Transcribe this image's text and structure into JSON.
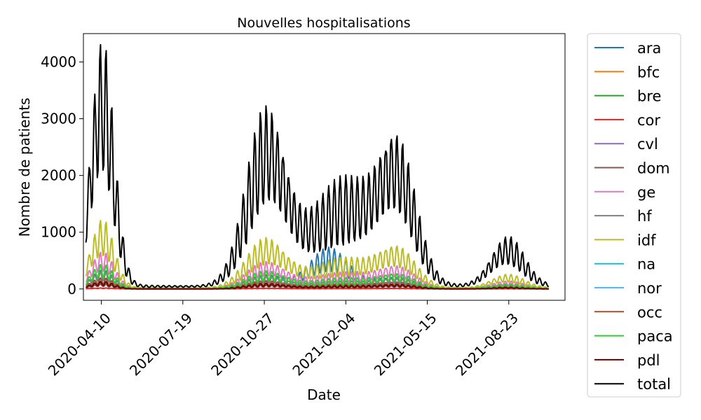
{
  "chart_data": {
    "type": "line",
    "title": "Nouvelles hospitalisations",
    "xlabel": "Date",
    "ylabel": "Nombre de patients",
    "x_start": "2020-03-19",
    "x_end": "2021-10-31",
    "x_ticks": [
      "2020-04-10",
      "2020-07-19",
      "2020-10-27",
      "2021-02-04",
      "2021-05-15",
      "2021-08-23"
    ],
    "ylim": [
      -200,
      4500
    ],
    "y_ticks": [
      0,
      1000,
      2000,
      3000,
      4000
    ],
    "legend_position": "outside-right",
    "series": [
      {
        "name": "ara",
        "color": "#1f77b4",
        "scale": 0.075,
        "extra": [
          [
            300,
            22,
            600
          ]
        ]
      },
      {
        "name": "bfc",
        "color": "#ff7f0e",
        "scale": 0.035
      },
      {
        "name": "bre",
        "color": "#2ca02c",
        "scale": 0.022
      },
      {
        "name": "cor",
        "color": "#d62728",
        "scale": 0.004
      },
      {
        "name": "cvl",
        "color": "#9467bd",
        "scale": 0.028
      },
      {
        "name": "dom",
        "color": "#8c564b",
        "scale": 0.02
      },
      {
        "name": "ge",
        "color": "#e377c2",
        "scale": 0.15
      },
      {
        "name": "hf",
        "color": "#7f7f7f",
        "scale": 0.07
      },
      {
        "name": "idf",
        "color": "#bcbd22",
        "scale": 0.28
      },
      {
        "name": "na",
        "color": "#17becf",
        "scale": 0.04
      },
      {
        "name": "nor",
        "color": "#4db8ff",
        "scale": 0.04
      },
      {
        "name": "occ",
        "color": "#a0522d",
        "scale": 0.045
      },
      {
        "name": "paca",
        "color": "#33cc33",
        "scale": 0.1
      },
      {
        "name": "pdl",
        "color": "#6b0000",
        "scale": 0.03
      },
      {
        "name": "total",
        "color": "#000000",
        "scale": 1.0
      }
    ],
    "total_waves": [
      {
        "center_day": 23,
        "peak": 4280,
        "width": 14
      },
      {
        "center_day": 225,
        "peak": 3000,
        "width": 24
      },
      {
        "center_day": 320,
        "peak": 1750,
        "width": 42
      },
      {
        "center_day": 385,
        "peak": 2200,
        "width": 22
      },
      {
        "center_day": 520,
        "peak": 850,
        "width": 20
      }
    ],
    "base_level": 60
  }
}
